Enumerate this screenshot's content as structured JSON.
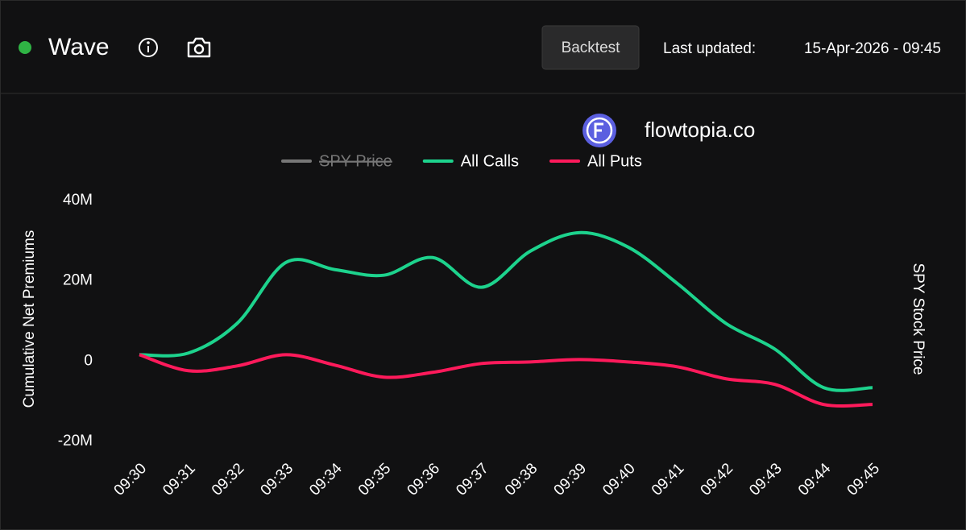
{
  "header": {
    "title": "Wave",
    "button": "Backtest",
    "updated_label": "Last updated:",
    "updated_value": "15-Apr-2026 - 09:45"
  },
  "brand": "flowtopia.co",
  "chart_data": {
    "type": "line",
    "y_label": "Cumulative Net Premiums",
    "y2_label": "SPY Stock Price",
    "categories": [
      "09:30",
      "09:31",
      "09:32",
      "09:33",
      "09:34",
      "09:35",
      "09:36",
      "09:37",
      "09:38",
      "09:39",
      "09:40",
      "09:41",
      "09:42",
      "09:43",
      "09:44",
      "09:45"
    ],
    "hidden_series": [
      {
        "name": "SPY Price",
        "color": "#777777"
      }
    ],
    "series": [
      {
        "name": "All Calls",
        "color": "#1dd38d",
        "values": [
          1.6,
          2,
          9.4,
          24.6,
          22.8,
          21.4,
          25.8,
          18.4,
          27.4,
          32,
          28.4,
          19.4,
          9.4,
          3,
          -6.6,
          -6.6
        ]
      },
      {
        "name": "All Puts",
        "color": "#ff1a5b",
        "values": [
          1.6,
          -2.4,
          -1.2,
          1.6,
          -1,
          -4,
          -2.8,
          -0.6,
          -0.2,
          0.4,
          -0.2,
          -1.4,
          -4.4,
          -5.8,
          -10.8,
          -10.8
        ]
      }
    ],
    "ylim": [
      -20,
      40
    ],
    "yticks": [
      {
        "value": -20,
        "label": "-20M"
      },
      0,
      {
        "value": 20,
        "label": "20M"
      },
      {
        "value": 40,
        "label": "40M"
      }
    ]
  }
}
